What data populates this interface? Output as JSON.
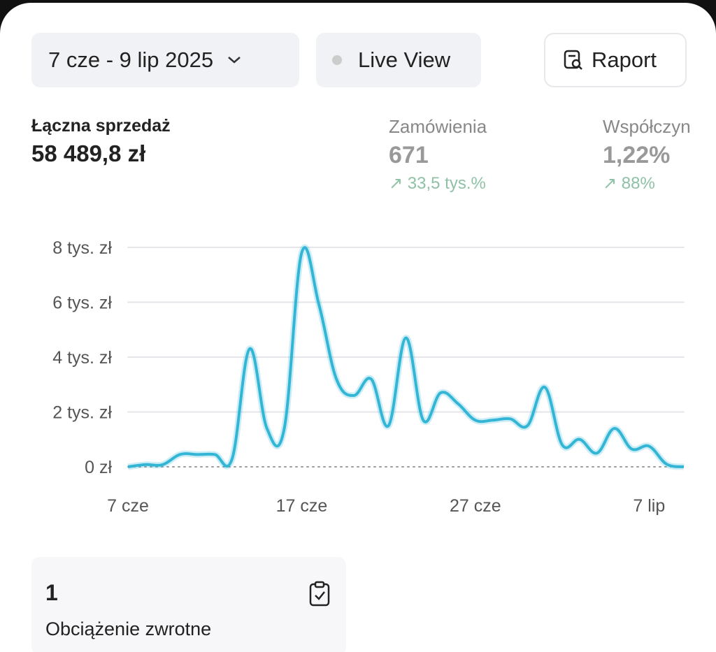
{
  "toolbar": {
    "date_range": "7 cze - 9 lip 2025",
    "live_view": "Live View",
    "report": "Raport"
  },
  "metrics": [
    {
      "label": "Łączna sprzedaż",
      "value": "58 489,8 zł"
    },
    {
      "label": "Zamówienia",
      "value": "671",
      "change": "33,5 tys.%"
    },
    {
      "label": "Współczyn",
      "value": "1,22%",
      "change": "88%"
    }
  ],
  "chart_data": {
    "type": "line",
    "categories": [
      "7 cze",
      null,
      null,
      null,
      null,
      null,
      null,
      null,
      null,
      null,
      "17 cze",
      null,
      null,
      null,
      null,
      null,
      null,
      null,
      null,
      null,
      "27 cze",
      null,
      null,
      null,
      null,
      null,
      null,
      null,
      null,
      null,
      "7 lip",
      null,
      null
    ],
    "series": [
      {
        "color": "#33b6d6",
        "values": [
          0,
          80,
          80,
          450,
          450,
          450,
          300,
          4300,
          1400,
          1400,
          7800,
          5900,
          3200,
          2600,
          3200,
          1500,
          4700,
          1700,
          2700,
          2300,
          1700,
          1700,
          1750,
          1500,
          2900,
          800,
          1000,
          500,
          1400,
          650,
          750,
          100,
          0
        ]
      }
    ],
    "ylim": [
      0,
      8000
    ],
    "yticks": [
      {
        "value": 0,
        "label": "0 zł"
      },
      {
        "value": 2000,
        "label": "2 tys. zł"
      },
      {
        "value": 4000,
        "label": "4 tys. zł"
      },
      {
        "value": 6000,
        "label": "6 tys. zł"
      },
      {
        "value": 8000,
        "label": "8 tys. zł"
      }
    ],
    "grid": true
  },
  "card": {
    "value": "1",
    "label": "Obciążenie zwrotne"
  }
}
